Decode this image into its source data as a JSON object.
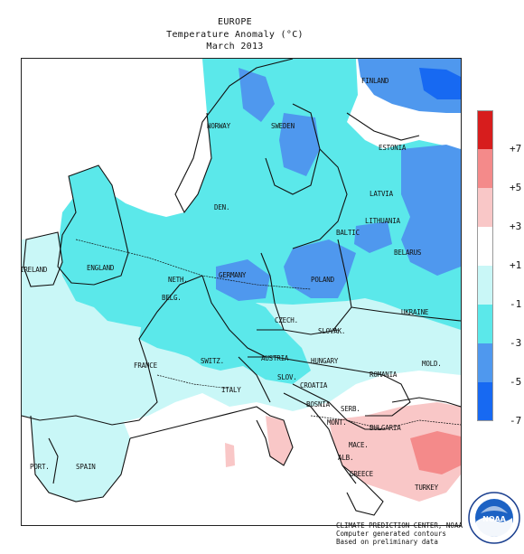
{
  "header": {
    "region": "EUROPE",
    "subtitle": "Temperature Anomaly (°C)",
    "period": "March 2013"
  },
  "map": {
    "countries": [
      {
        "name": "FINLAND"
      },
      {
        "name": "NORWAY"
      },
      {
        "name": "SWEDEN"
      },
      {
        "name": "ESTONIA"
      },
      {
        "name": "LATVIA"
      },
      {
        "name": "DEN."
      },
      {
        "name": "LITHUANIA"
      },
      {
        "name": "BALTIC"
      },
      {
        "name": "BELARUS"
      },
      {
        "name": "IRELAND"
      },
      {
        "name": "ENGLAND"
      },
      {
        "name": "NETH."
      },
      {
        "name": "BELG."
      },
      {
        "name": "GERMANY"
      },
      {
        "name": "POLAND"
      },
      {
        "name": "UKRAINE"
      },
      {
        "name": "CZECH."
      },
      {
        "name": "SLOVAK."
      },
      {
        "name": "FRANCE"
      },
      {
        "name": "SWITZ."
      },
      {
        "name": "AUSTRIA"
      },
      {
        "name": "HUNGARY"
      },
      {
        "name": "MOLD."
      },
      {
        "name": "ROMANIA"
      },
      {
        "name": "SLOV."
      },
      {
        "name": "CROATIA"
      },
      {
        "name": "ITALY"
      },
      {
        "name": "BOSNIA"
      },
      {
        "name": "SERB."
      },
      {
        "name": "MONT."
      },
      {
        "name": "BULGARIA"
      },
      {
        "name": "MACE."
      },
      {
        "name": "ALB."
      },
      {
        "name": "GREECE"
      },
      {
        "name": "PORT."
      },
      {
        "name": "SPAIN"
      },
      {
        "name": "TURKEY"
      }
    ]
  },
  "legend": {
    "colors": [
      "#d71d1d",
      "#f48a8a",
      "#f9c7c7",
      "#ffffff",
      "#c9f7f7",
      "#5be8ea",
      "#4f98ee",
      "#1769f2"
    ],
    "ticks": [
      "+7",
      "+5",
      "+3",
      "+1",
      "-1",
      "-3",
      "-5",
      "-7"
    ]
  },
  "credits": {
    "line1": "CLIMATE PREDICTION CENTER, NOAA",
    "line2": "Computer generated contours",
    "line3": "Based on preliminary data"
  },
  "logo": {
    "label": "NOAA",
    "icon": "noaa-seal-icon"
  }
}
